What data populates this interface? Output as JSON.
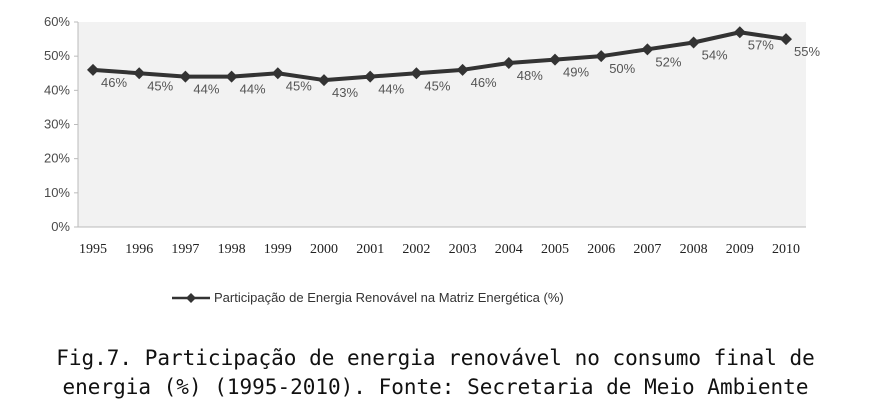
{
  "chart_data": {
    "type": "line",
    "categories": [
      "1995",
      "1996",
      "1997",
      "1998",
      "1999",
      "2000",
      "2001",
      "2002",
      "2003",
      "2004",
      "2005",
      "2006",
      "2007",
      "2008",
      "2009",
      "2010"
    ],
    "series": [
      {
        "name": "Participação de Energia Renovável na Matriz Energética (%)",
        "values": [
          46,
          45,
          44,
          44,
          45,
          43,
          44,
          45,
          46,
          48,
          49,
          50,
          52,
          54,
          57,
          55
        ],
        "data_labels": [
          "46%",
          "45%",
          "44%",
          "44%",
          "45%",
          "43%",
          "44%",
          "45%",
          "46%",
          "48%",
          "49%",
          "50%",
          "52%",
          "54%",
          "57%",
          "55%"
        ]
      }
    ],
    "y_ticks": [
      "0%",
      "10%",
      "20%",
      "30%",
      "40%",
      "50%",
      "60%"
    ],
    "ylim": [
      0,
      60
    ],
    "grid": false,
    "legend_position": "bottom",
    "colors": {
      "line": "#333333",
      "plot_bg": "#f2f2f2"
    }
  },
  "caption": {
    "line1": "Fig.7. Participação de energia renovável no consumo final de",
    "line2": "energia (%) (1995-2010). Fonte: Secretaria de Meio Ambiente"
  }
}
